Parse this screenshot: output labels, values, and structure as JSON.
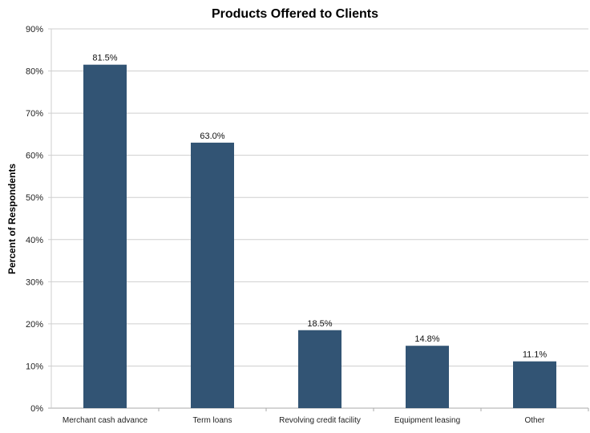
{
  "chart_data": {
    "type": "bar",
    "title": "Products Offered to Clients",
    "xlabel": "",
    "ylabel": "Percent of Respondents",
    "categories": [
      "Merchant cash advance",
      "Term loans",
      "Revolving credit facility",
      "Equipment leasing",
      "Other"
    ],
    "values": [
      81.5,
      63.0,
      18.5,
      14.8,
      11.1
    ],
    "data_labels": [
      "81.5%",
      "63.0%",
      "18.5%",
      "14.8%",
      "11.1%"
    ],
    "ylim": [
      0,
      90
    ],
    "yticks": [
      "0%",
      "10%",
      "20%",
      "30%",
      "40%",
      "50%",
      "60%",
      "70%",
      "80%",
      "90%"
    ],
    "grid": true,
    "legend": "none",
    "bar_color": "#325474"
  }
}
